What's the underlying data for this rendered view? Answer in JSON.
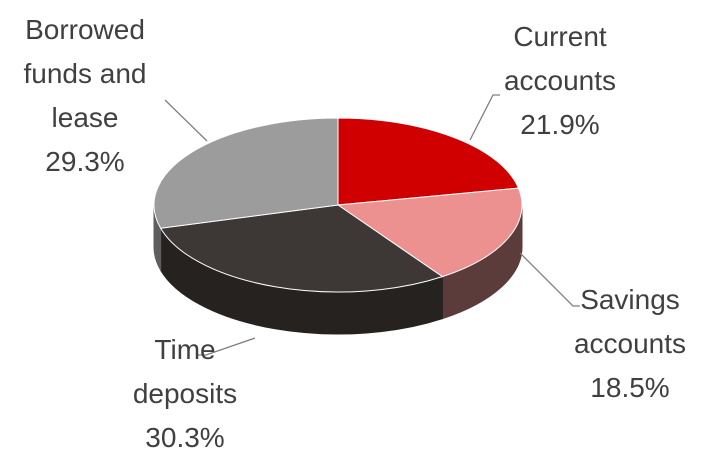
{
  "chart_data": {
    "type": "pie",
    "categories": [
      "Current accounts",
      "Savings accounts",
      "Time deposits",
      "Borrowed funds and lease"
    ],
    "values": [
      21.9,
      18.5,
      30.3,
      29.3
    ],
    "value_labels": [
      "21.9%",
      "18.5%",
      "30.3%",
      "29.3%"
    ],
    "colors": [
      "#d00000",
      "#ec9090",
      "#3d3836",
      "#9c9c9c"
    ],
    "side_colors": [
      "#8a0000",
      "#5c3b3b",
      "#262220",
      "#5e5e5e"
    ]
  }
}
